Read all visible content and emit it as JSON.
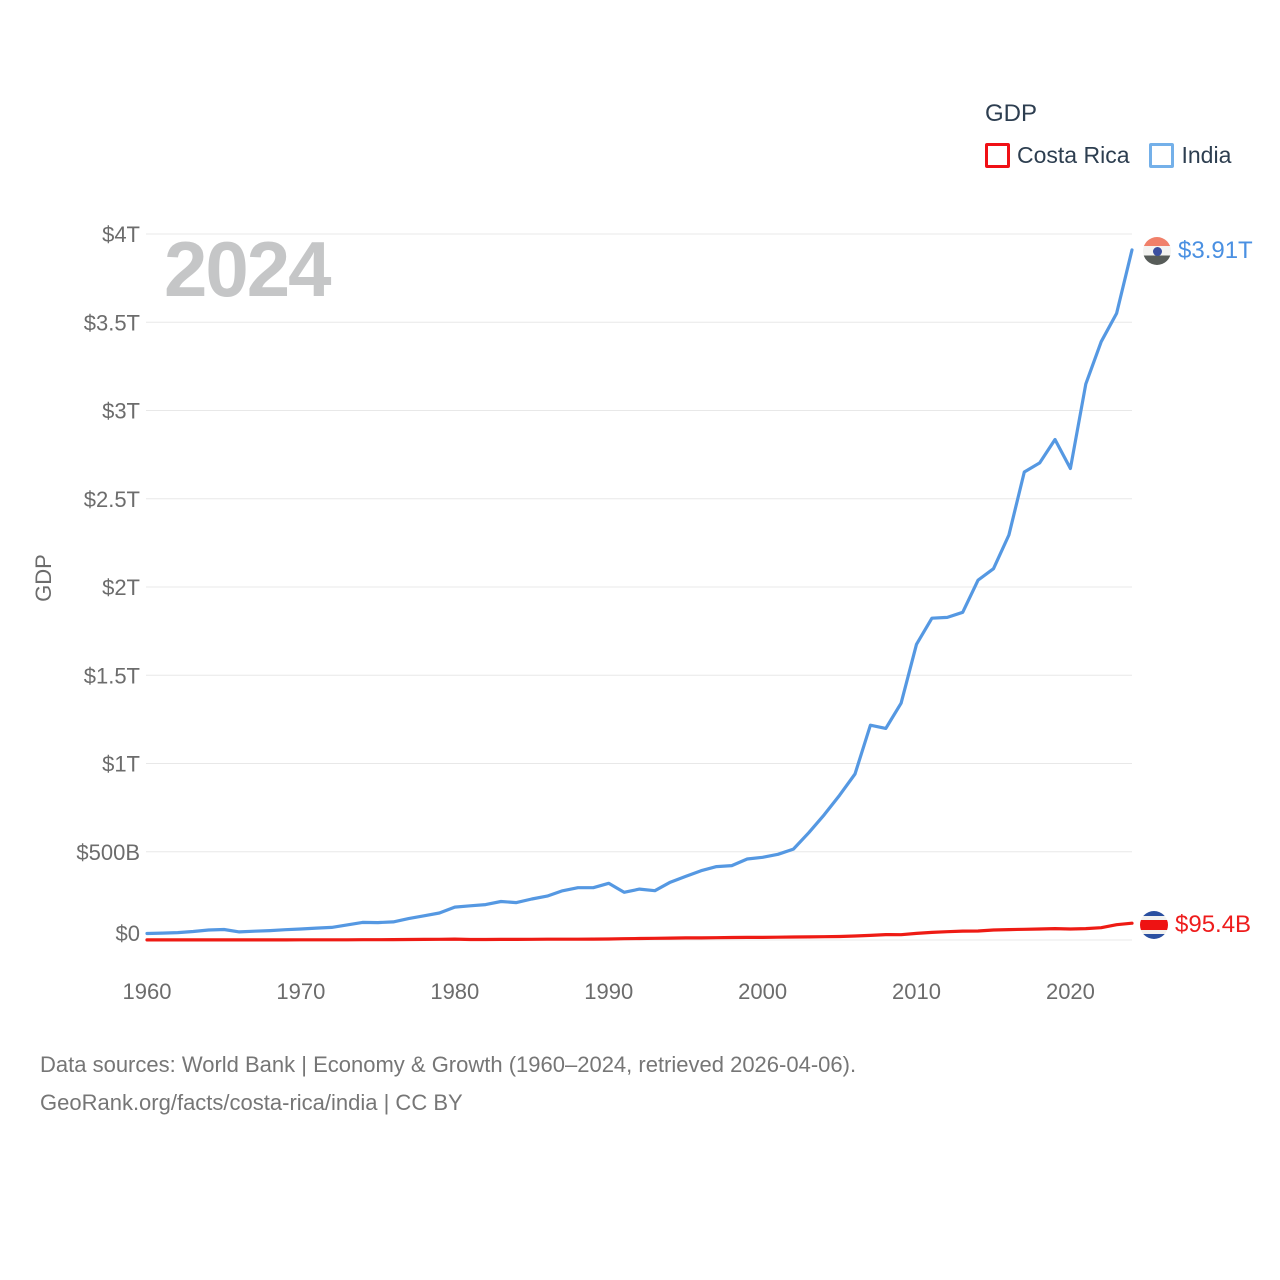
{
  "watermark": "2024",
  "legend": {
    "title": "GDP",
    "items": [
      {
        "label": "Costa Rica",
        "color": "#f01016"
      },
      {
        "label": "India",
        "color": "#74b0e9"
      }
    ]
  },
  "y_axis": {
    "label": "GDP"
  },
  "end_labels": [
    {
      "series": "India",
      "text": "$3.91T",
      "color": "#4a90e2",
      "flag": "india-flag-icon"
    },
    {
      "series": "Costa Rica",
      "text": "$95.4B",
      "color": "#ee1c1c",
      "flag": "costa-rica-flag-icon"
    }
  ],
  "source": {
    "line1": "Data sources: World Bank | Economy & Growth (1960–2024, retrieved 2026-04-06).",
    "line2": "GeoRank.org/facts/costa-rica/india | CC BY"
  },
  "chart_data": {
    "type": "line",
    "title": "GDP",
    "xlabel": "",
    "ylabel": "GDP",
    "units": "billions of current US$",
    "grid": "horizontal",
    "legend_position": "top-right",
    "xlim": [
      1960,
      2024
    ],
    "ylim": [
      0,
      4000
    ],
    "x_ticks": [
      {
        "label": "1960",
        "value": 1960
      },
      {
        "label": "1970",
        "value": 1970
      },
      {
        "label": "1980",
        "value": 1980
      },
      {
        "label": "1990",
        "value": 1990
      },
      {
        "label": "2000",
        "value": 2000
      },
      {
        "label": "2010",
        "value": 2010
      },
      {
        "label": "2020",
        "value": 2020
      }
    ],
    "y_ticks": [
      {
        "label": "$0",
        "value": 0
      },
      {
        "label": "$500B",
        "value": 500
      },
      {
        "label": "$1T",
        "value": 1000
      },
      {
        "label": "$1.5T",
        "value": 1500
      },
      {
        "label": "$2T",
        "value": 2000
      },
      {
        "label": "$2.5T",
        "value": 2500
      },
      {
        "label": "$3T",
        "value": 3000
      },
      {
        "label": "$3.5T",
        "value": 3500
      },
      {
        "label": "$4T",
        "value": 4000
      }
    ],
    "x": [
      1960,
      1961,
      1962,
      1963,
      1964,
      1965,
      1966,
      1967,
      1968,
      1969,
      1970,
      1971,
      1972,
      1973,
      1974,
      1975,
      1976,
      1977,
      1978,
      1979,
      1980,
      1981,
      1982,
      1983,
      1984,
      1985,
      1986,
      1987,
      1988,
      1989,
      1990,
      1991,
      1992,
      1993,
      1994,
      1995,
      1996,
      1997,
      1998,
      1999,
      2000,
      2001,
      2002,
      2003,
      2004,
      2005,
      2006,
      2007,
      2008,
      2009,
      2010,
      2011,
      2012,
      2013,
      2014,
      2015,
      2016,
      2017,
      2018,
      2019,
      2020,
      2021,
      2022,
      2023,
      2024
    ],
    "series": [
      {
        "name": "Costa Rica",
        "color": "#ee1b14",
        "end_label": "$95.4B",
        "values": [
          0.51,
          0.49,
          0.48,
          0.48,
          0.46,
          0.59,
          0.62,
          0.66,
          0.71,
          0.78,
          0.98,
          1.08,
          1.18,
          1.39,
          1.69,
          1.96,
          2.41,
          3.07,
          3.44,
          4.04,
          4.83,
          2.62,
          2.61,
          3.15,
          3.67,
          3.92,
          4.42,
          4.53,
          4.6,
          5.26,
          5.72,
          7.16,
          8.54,
          9.57,
          10.67,
          11.72,
          11.85,
          12.83,
          13.95,
          14.9,
          14.95,
          16.11,
          16.84,
          17.52,
          18.6,
          19.96,
          22.53,
          26.32,
          30.52,
          30.08,
          37.66,
          43.0,
          47.18,
          50.65,
          51.1,
          56.44,
          58.85,
          60.52,
          62.42,
          64.42,
          62.37,
          64.61,
          69.67,
          86.5,
          95.4
        ]
      },
      {
        "name": "India",
        "color": "#5598e2",
        "end_label": "$3.91T",
        "values": [
          36.95,
          39.23,
          42.16,
          48.42,
          56.48,
          59.55,
          45.87,
          50.13,
          53.09,
          58.45,
          62.42,
          67.35,
          71.46,
          85.52,
          99.53,
          98.47,
          102.72,
          121.49,
          137.3,
          152.99,
          186.33,
          193.49,
          200.71,
          218.26,
          212.16,
          232.51,
          248.99,
          279.03,
          296.59,
          296.04,
          320.98,
          270.11,
          288.21,
          279.3,
          327.28,
          360.28,
          392.9,
          415.87,
          421.35,
          458.82,
          468.39,
          485.44,
          514.94,
          607.7,
          709.15,
          820.38,
          940.26,
          1216.74,
          1198.9,
          1341.89,
          1675.62,
          1823.05,
          1827.64,
          1856.72,
          2039.13,
          2103.59,
          2294.8,
          2651.47,
          2702.93,
          2835.61,
          2671.6,
          3150.31,
          3389.69,
          3549.92,
          3910.0
        ]
      }
    ]
  }
}
